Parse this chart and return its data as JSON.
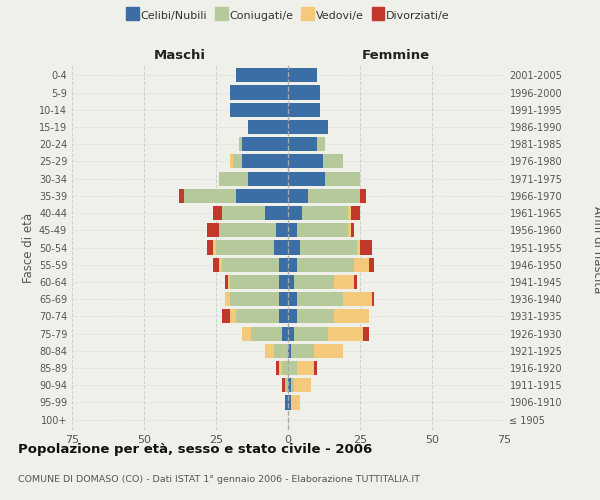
{
  "age_groups": [
    "100+",
    "95-99",
    "90-94",
    "85-89",
    "80-84",
    "75-79",
    "70-74",
    "65-69",
    "60-64",
    "55-59",
    "50-54",
    "45-49",
    "40-44",
    "35-39",
    "30-34",
    "25-29",
    "20-24",
    "15-19",
    "10-14",
    "5-9",
    "0-4"
  ],
  "birth_years": [
    "≤ 1905",
    "1906-1910",
    "1911-1915",
    "1916-1920",
    "1921-1925",
    "1926-1930",
    "1931-1935",
    "1936-1940",
    "1941-1945",
    "1946-1950",
    "1951-1955",
    "1956-1960",
    "1961-1965",
    "1966-1970",
    "1971-1975",
    "1976-1980",
    "1981-1985",
    "1986-1990",
    "1991-1995",
    "1996-2000",
    "2001-2005"
  ],
  "maschi": {
    "celibi": [
      0,
      1,
      0,
      0,
      0,
      2,
      3,
      3,
      3,
      3,
      5,
      4,
      8,
      18,
      14,
      16,
      16,
      14,
      20,
      20,
      18
    ],
    "coniugati": [
      0,
      0,
      1,
      2,
      5,
      11,
      15,
      17,
      17,
      20,
      20,
      20,
      15,
      18,
      10,
      3,
      1,
      0,
      0,
      0,
      0
    ],
    "vedovi": [
      0,
      0,
      0,
      1,
      3,
      3,
      2,
      2,
      1,
      1,
      1,
      0,
      0,
      0,
      0,
      1,
      0,
      0,
      0,
      0,
      0
    ],
    "divorziati": [
      0,
      0,
      1,
      1,
      0,
      0,
      3,
      0,
      1,
      2,
      2,
      4,
      3,
      2,
      0,
      0,
      0,
      0,
      0,
      0,
      0
    ]
  },
  "femmine": {
    "nubili": [
      0,
      1,
      1,
      0,
      1,
      2,
      3,
      3,
      2,
      3,
      4,
      3,
      5,
      7,
      13,
      12,
      10,
      14,
      11,
      11,
      10
    ],
    "coniugate": [
      0,
      0,
      1,
      3,
      8,
      12,
      13,
      16,
      14,
      20,
      20,
      18,
      16,
      18,
      12,
      7,
      3,
      0,
      0,
      0,
      0
    ],
    "vedove": [
      0,
      3,
      6,
      6,
      10,
      12,
      12,
      10,
      7,
      5,
      1,
      1,
      1,
      0,
      0,
      0,
      0,
      0,
      0,
      0,
      0
    ],
    "divorziate": [
      0,
      0,
      0,
      1,
      0,
      2,
      0,
      1,
      1,
      2,
      4,
      1,
      3,
      2,
      0,
      0,
      0,
      0,
      0,
      0,
      0
    ]
  },
  "colors": {
    "celibi": "#3a6ea5",
    "coniugati": "#b5c99a",
    "vedovi": "#f5c97a",
    "divorziati": "#c0392b"
  },
  "xlim": 75,
  "title": "Popolazione per età, sesso e stato civile - 2006",
  "subtitle": "COMUNE DI DOMASO (CO) - Dati ISTAT 1° gennaio 2006 - Elaborazione TUTTITALIA.IT",
  "ylabel_left": "Fasce di età",
  "ylabel_right": "Anni di nascita",
  "xlabel_left": "Maschi",
  "xlabel_right": "Femmine",
  "background_color": "#f0f0eb",
  "grid_color": "#cccccc"
}
